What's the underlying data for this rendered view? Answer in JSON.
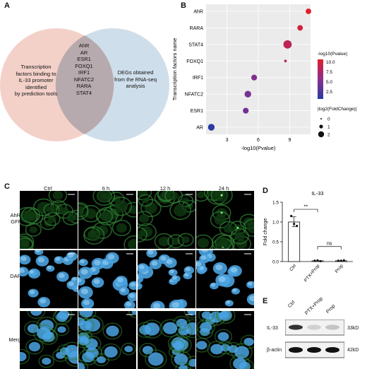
{
  "panels": {
    "a": "A",
    "b": "B",
    "c": "C",
    "d": "D",
    "e": "E"
  },
  "venn": {
    "left_text": [
      "Transcription",
      "factors binding to",
      "IL-33 promoter",
      "identified",
      "by prediction tools"
    ],
    "right_text": [
      "DEGs obtained",
      "from the RNA-seq",
      "analysis"
    ],
    "overlap": [
      "AhR",
      "AR",
      "ESR1",
      "FOXQ1",
      "IRF1",
      "NFATC2",
      "RARA",
      "STAT4"
    ],
    "colors": {
      "left": "#f1c9c0",
      "right": "#c7d8e8",
      "overlap": "#b9a6a8"
    }
  },
  "dotplot": {
    "ylabel": "Transcription factors name",
    "xlabel": "-log10(Pvalue)",
    "xticks": [
      "3",
      "6",
      "9"
    ],
    "legend_color_title": "-log10(Pvalue)",
    "legend_color_ticks": [
      "10.0",
      "7.5",
      "5.0",
      "2.5"
    ],
    "legend_size_title": "|log2(FoldChange)|",
    "legend_size_ticks": [
      "0",
      "1",
      "2"
    ],
    "colors": {
      "low": "#2b3aa0",
      "mid": "#8b2f8c",
      "high": "#e01e2a"
    }
  },
  "chart_data": [
    {
      "type": "scatter",
      "title": "",
      "xlabel": "-log10(Pvalue)",
      "ylabel": "Transcription factors name",
      "xlim": [
        1,
        11
      ],
      "categories": [
        "AhR",
        "RARA",
        "STAT4",
        "FOXQ1",
        "IRF1",
        "NFATC2",
        "ESR1",
        "AR"
      ],
      "points": [
        {
          "name": "AhR",
          "x": 10.8,
          "size": 1.2
        },
        {
          "name": "RARA",
          "x": 10.0,
          "size": 1.2
        },
        {
          "name": "STAT4",
          "x": 8.8,
          "size": 2.2
        },
        {
          "name": "FOXQ1",
          "x": 8.6,
          "size": 0.2
        },
        {
          "name": "IRF1",
          "x": 5.6,
          "size": 1.3
        },
        {
          "name": "NFATC2",
          "x": 5.0,
          "size": 1.6
        },
        {
          "name": "ESR1",
          "x": 4.8,
          "size": 1.3
        },
        {
          "name": "AR",
          "x": 1.5,
          "size": 1.6
        }
      ]
    },
    {
      "type": "bar",
      "title": "IL-33",
      "xlabel": "",
      "ylabel": "Fold change",
      "ylim": [
        0,
        1.5
      ],
      "yticks": [
        "0.0",
        "0.5",
        "1.0",
        "1.5"
      ],
      "categories": [
        "Ctrl",
        "PTX+Prop",
        "Prop"
      ],
      "values": [
        1.0,
        0.02,
        0.02
      ],
      "points": [
        [
          1.15,
          0.95,
          0.9
        ],
        [
          0.02,
          0.03,
          0.01
        ],
        [
          0.02,
          0.02,
          0.03
        ]
      ],
      "annotations": [
        "**",
        "ns"
      ]
    }
  ],
  "micro": {
    "cols": [
      "Ctrl",
      "6 h",
      "12 h",
      "24 h"
    ],
    "rows": [
      "AhR-\nGFP",
      "DAPI",
      "Merge"
    ]
  },
  "blot": {
    "cols": [
      "Ctrl",
      "PTX+Prop",
      "Prop"
    ],
    "rows": [
      "IL-33",
      "β-actin"
    ],
    "sizes": [
      "33kD",
      "42kD"
    ],
    "bands": {
      "il33": [
        0.85,
        0.15,
        0.2
      ],
      "actin": [
        1,
        1,
        1
      ]
    }
  }
}
